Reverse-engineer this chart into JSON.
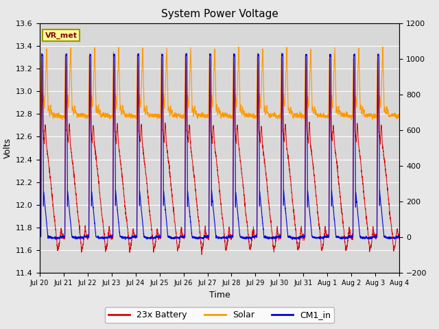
{
  "title": "System Power Voltage",
  "xlabel": "Time",
  "ylabel_left": "Volts",
  "ylim_left": [
    11.4,
    13.6
  ],
  "ylim_right": [
    -200,
    1200
  ],
  "yticks_left": [
    11.4,
    11.6,
    11.8,
    12.0,
    12.2,
    12.4,
    12.6,
    12.8,
    13.0,
    13.2,
    13.4,
    13.6
  ],
  "yticks_right": [
    -200,
    0,
    200,
    400,
    600,
    800,
    1000,
    1200
  ],
  "background_color": "#e8e8e8",
  "plot_bg_color": "#d8d8d8",
  "grid_color": "#ffffff",
  "line_colors": {
    "battery": "#dd0000",
    "solar": "#ff9900",
    "cm1": "#0000dd"
  },
  "legend_labels": [
    "23x Battery",
    "Solar",
    "CM1_in"
  ],
  "annotation_text": "VR_met",
  "annotation_box_color": "#ffff99",
  "annotation_box_edge": "#999900",
  "n_days": 15,
  "date_labels": [
    "Jul 20",
    "Jul 21",
    "Jul 22",
    "Jul 23",
    "Jul 24",
    "Jul 25",
    "Jul 26",
    "Jul 27",
    "Jul 28",
    "Jul 29",
    "Jul 30",
    "Jul 31",
    "Aug 1",
    "Aug 2",
    "Aug 3",
    "Aug 4"
  ]
}
